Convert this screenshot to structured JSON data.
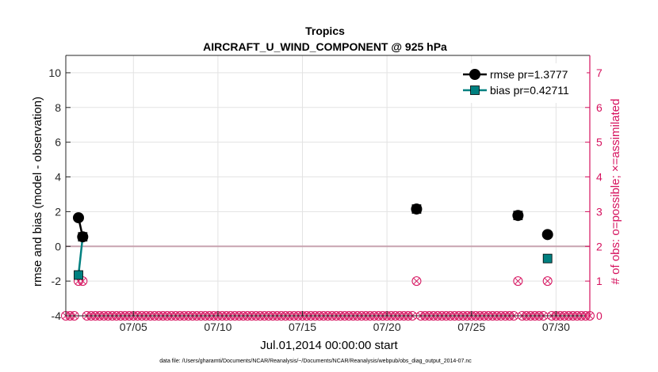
{
  "title_line1": "Tropics",
  "title_line2": "AIRCRAFT_U_WIND_COMPONENT @ 925 hPa",
  "footnote": "data file: /Users/gharamti/Documents/NCAR/Reanalysis/~/Documents/NCAR/Reanalysis/webpub/obs_diag_output_2014-07.nc",
  "colors": {
    "rmse": "#000000",
    "bias": "#008080",
    "obs_axis": "#d6135f",
    "zero_line": "#c8a3b0",
    "grid": "#e3e3e3"
  },
  "chart_data": {
    "type": "line",
    "xlabel": "Jul.01,2014 00:00:00 start",
    "ylabel": "rmse and bias (model - observation)",
    "y2label": "# of obs: o=possible; ×=assimilated",
    "xlim": [
      1.0,
      32.0
    ],
    "ylim": [
      -4,
      11
    ],
    "y2lim": [
      0,
      7.5
    ],
    "x_ticks": [
      5,
      10,
      15,
      20,
      25,
      30
    ],
    "x_tick_labels": [
      "07/05",
      "07/10",
      "07/15",
      "07/20",
      "07/25",
      "07/30"
    ],
    "y_ticks": [
      -4,
      -2,
      0,
      2,
      4,
      6,
      8,
      10
    ],
    "y_tick_labels": [
      "-4",
      "-2",
      "0",
      "2",
      "4",
      "6",
      "8",
      "10"
    ],
    "y2_ticks": [
      0,
      1,
      2,
      3,
      4,
      5,
      6,
      7
    ],
    "y2_tick_labels": [
      "0",
      "1",
      "2",
      "3",
      "4",
      "5",
      "6",
      "7"
    ],
    "grid": true,
    "legend_position": "top-right",
    "series": [
      {
        "name": "rmse pr=1.3777",
        "marker": "circle",
        "x": [
          1.75,
          2.0,
          21.75,
          27.75,
          29.5
        ],
        "y": [
          1.65,
          0.55,
          2.15,
          1.78,
          0.68
        ],
        "segments": [
          [
            0,
            1
          ]
        ]
      },
      {
        "name": "bias pr=0.42711",
        "marker": "square",
        "x": [
          1.75,
          2.0,
          21.75,
          27.75,
          29.5
        ],
        "y": [
          -1.65,
          0.55,
          2.15,
          1.78,
          -0.7
        ],
        "segments": [
          [
            0,
            1
          ]
        ]
      }
    ],
    "obs_counts": {
      "x_start": 1.0,
      "x_end": 32.0,
      "x_step": 0.25,
      "nonzero_x": [
        1.75,
        2.0,
        21.75,
        27.75,
        29.5
      ],
      "nonzero_count": 1
    }
  }
}
